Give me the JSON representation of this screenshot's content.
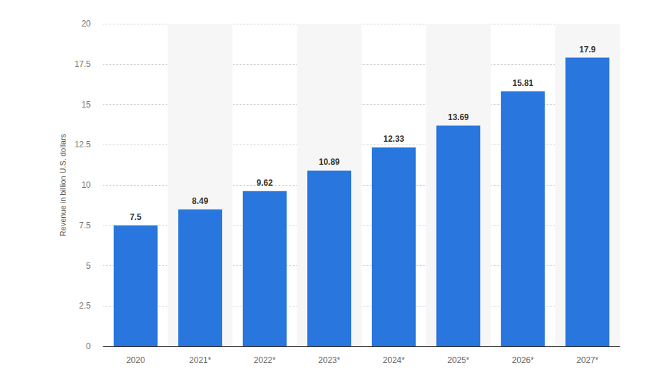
{
  "chart_data": {
    "type": "bar",
    "y_label": "Revenue in billion U.S. dollars",
    "categories": [
      "2020",
      "2021*",
      "2022*",
      "2023*",
      "2024*",
      "2025*",
      "2026*",
      "2027*"
    ],
    "values": [
      7.5,
      8.49,
      9.62,
      10.89,
      12.33,
      13.69,
      15.81,
      17.9
    ],
    "color": "#2876de",
    "ylim": [
      0,
      20
    ],
    "yticks": [
      0,
      2.5,
      5,
      7.5,
      10,
      12.5,
      15,
      17.5,
      20
    ],
    "grid": true,
    "data_labels": true
  }
}
